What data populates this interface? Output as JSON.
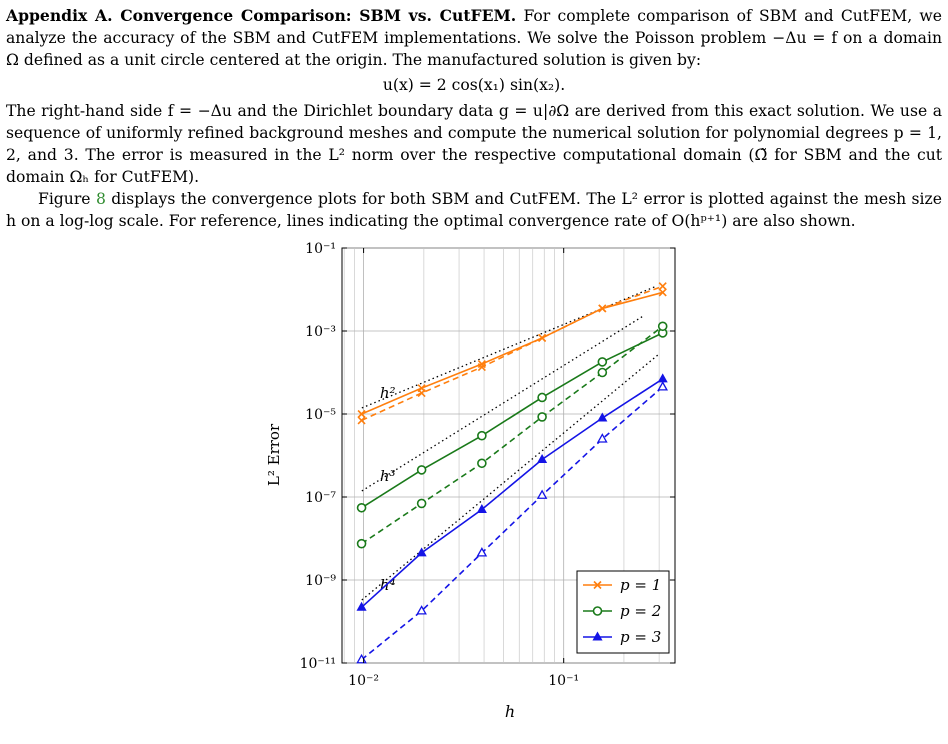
{
  "appendix": {
    "heading": "Appendix A. Convergence Comparison: SBM vs. CutFEM.",
    "p1": " For complete comparison of SBM and CutFEM, we analyze the accuracy of the SBM and CutFEM implementations. We solve the Poisson problem −Δu = f on a domain Ω defined as a unit circle centered at the origin. The manufactured solution is given by:",
    "equation": "u(x) = 2 cos(x₁) sin(x₂).",
    "p2": "The right-hand side f = −Δu and the Dirichlet boundary data g = u|∂Ω are derived from this exact solution. We use a sequence of uniformly refined background meshes and compute the numerical solution for polynomial degrees p = 1, 2, and 3. The error is measured in the L² norm over the respective computational domain (Ω̃ for SBM and the cut domain Ωₕ for CutFEM).",
    "p3_pre": "Figure ",
    "p3_ref": "8",
    "p3_post": " displays the convergence plots for both SBM and CutFEM. The L² error is plotted against the mesh size h on a log-log scale. For reference, lines indicating the optimal convergence rate of O(hᵖ⁺¹) are also shown."
  },
  "chart_data": {
    "type": "line",
    "xlabel": "h",
    "ylabel": "L² Error",
    "xscale": "log",
    "yscale": "log",
    "xlim": [
      0.0078,
      0.36
    ],
    "ylim": [
      1e-11,
      0.1
    ],
    "grid": true,
    "legend_position": "bottom-right",
    "x_tick_labels": [
      "10⁻²",
      "10⁻¹"
    ],
    "y_tick_labels": [
      "10⁻¹¹",
      "10⁻⁹",
      "10⁻⁷",
      "10⁻⁵",
      "10⁻³",
      "10⁻¹"
    ],
    "x": [
      0.00977,
      0.0195,
      0.039,
      0.078,
      0.156,
      0.3125
    ],
    "series": [
      {
        "name": "p = 1",
        "color": "#ff7f0e",
        "marker": "x",
        "style": "solid",
        "values": [
          1e-05,
          4.2e-05,
          0.00016,
          0.00068,
          0.0035,
          0.0085
        ]
      },
      {
        "name": "p = 1",
        "color": "#ff7f0e",
        "marker": "x",
        "style": "dashed",
        "values": [
          7e-06,
          3.2e-05,
          0.000135,
          0.00068,
          0.0035,
          0.012
        ]
      },
      {
        "name": "p = 2",
        "color": "#1a7a1a",
        "marker": "o",
        "style": "solid",
        "values": [
          5.5e-08,
          4.5e-07,
          3e-06,
          2.5e-05,
          0.00018,
          0.0009
        ]
      },
      {
        "name": "p = 2",
        "color": "#1a7a1a",
        "marker": "o",
        "style": "dashed",
        "values": [
          7.5e-09,
          7e-08,
          6.5e-07,
          8.5e-06,
          0.0001,
          0.0013
        ]
      },
      {
        "name": "p = 3",
        "color": "#1414e6",
        "marker": "^",
        "style": "solid",
        "values": [
          2.2e-10,
          4.5e-09,
          5e-08,
          8e-07,
          8e-06,
          7e-05
        ]
      },
      {
        "name": "p = 3",
        "color": "#1414e6",
        "marker": "^",
        "style": "dashed",
        "values": [
          1.2e-11,
          1.8e-10,
          4.5e-09,
          1.1e-07,
          2.5e-06,
          4.5e-05
        ]
      }
    ],
    "reference_lines": [
      {
        "label": "h²",
        "x": [
          0.0098,
          0.29
        ],
        "values": [
          1.4e-05,
          0.012
        ]
      },
      {
        "label": "h³",
        "x": [
          0.0098,
          0.25
        ],
        "values": [
          1.4e-07,
          0.0023
        ]
      },
      {
        "label": "h⁴",
        "x": [
          0.0098,
          0.3
        ],
        "values": [
          3.3e-10,
          0.00028
        ]
      }
    ],
    "legend": [
      {
        "label": "p = 1",
        "color": "#ff7f0e",
        "marker": "x"
      },
      {
        "label": "p = 2",
        "color": "#1a7a1a",
        "marker": "o"
      },
      {
        "label": "p = 3",
        "color": "#1414e6",
        "marker": "^"
      }
    ]
  }
}
